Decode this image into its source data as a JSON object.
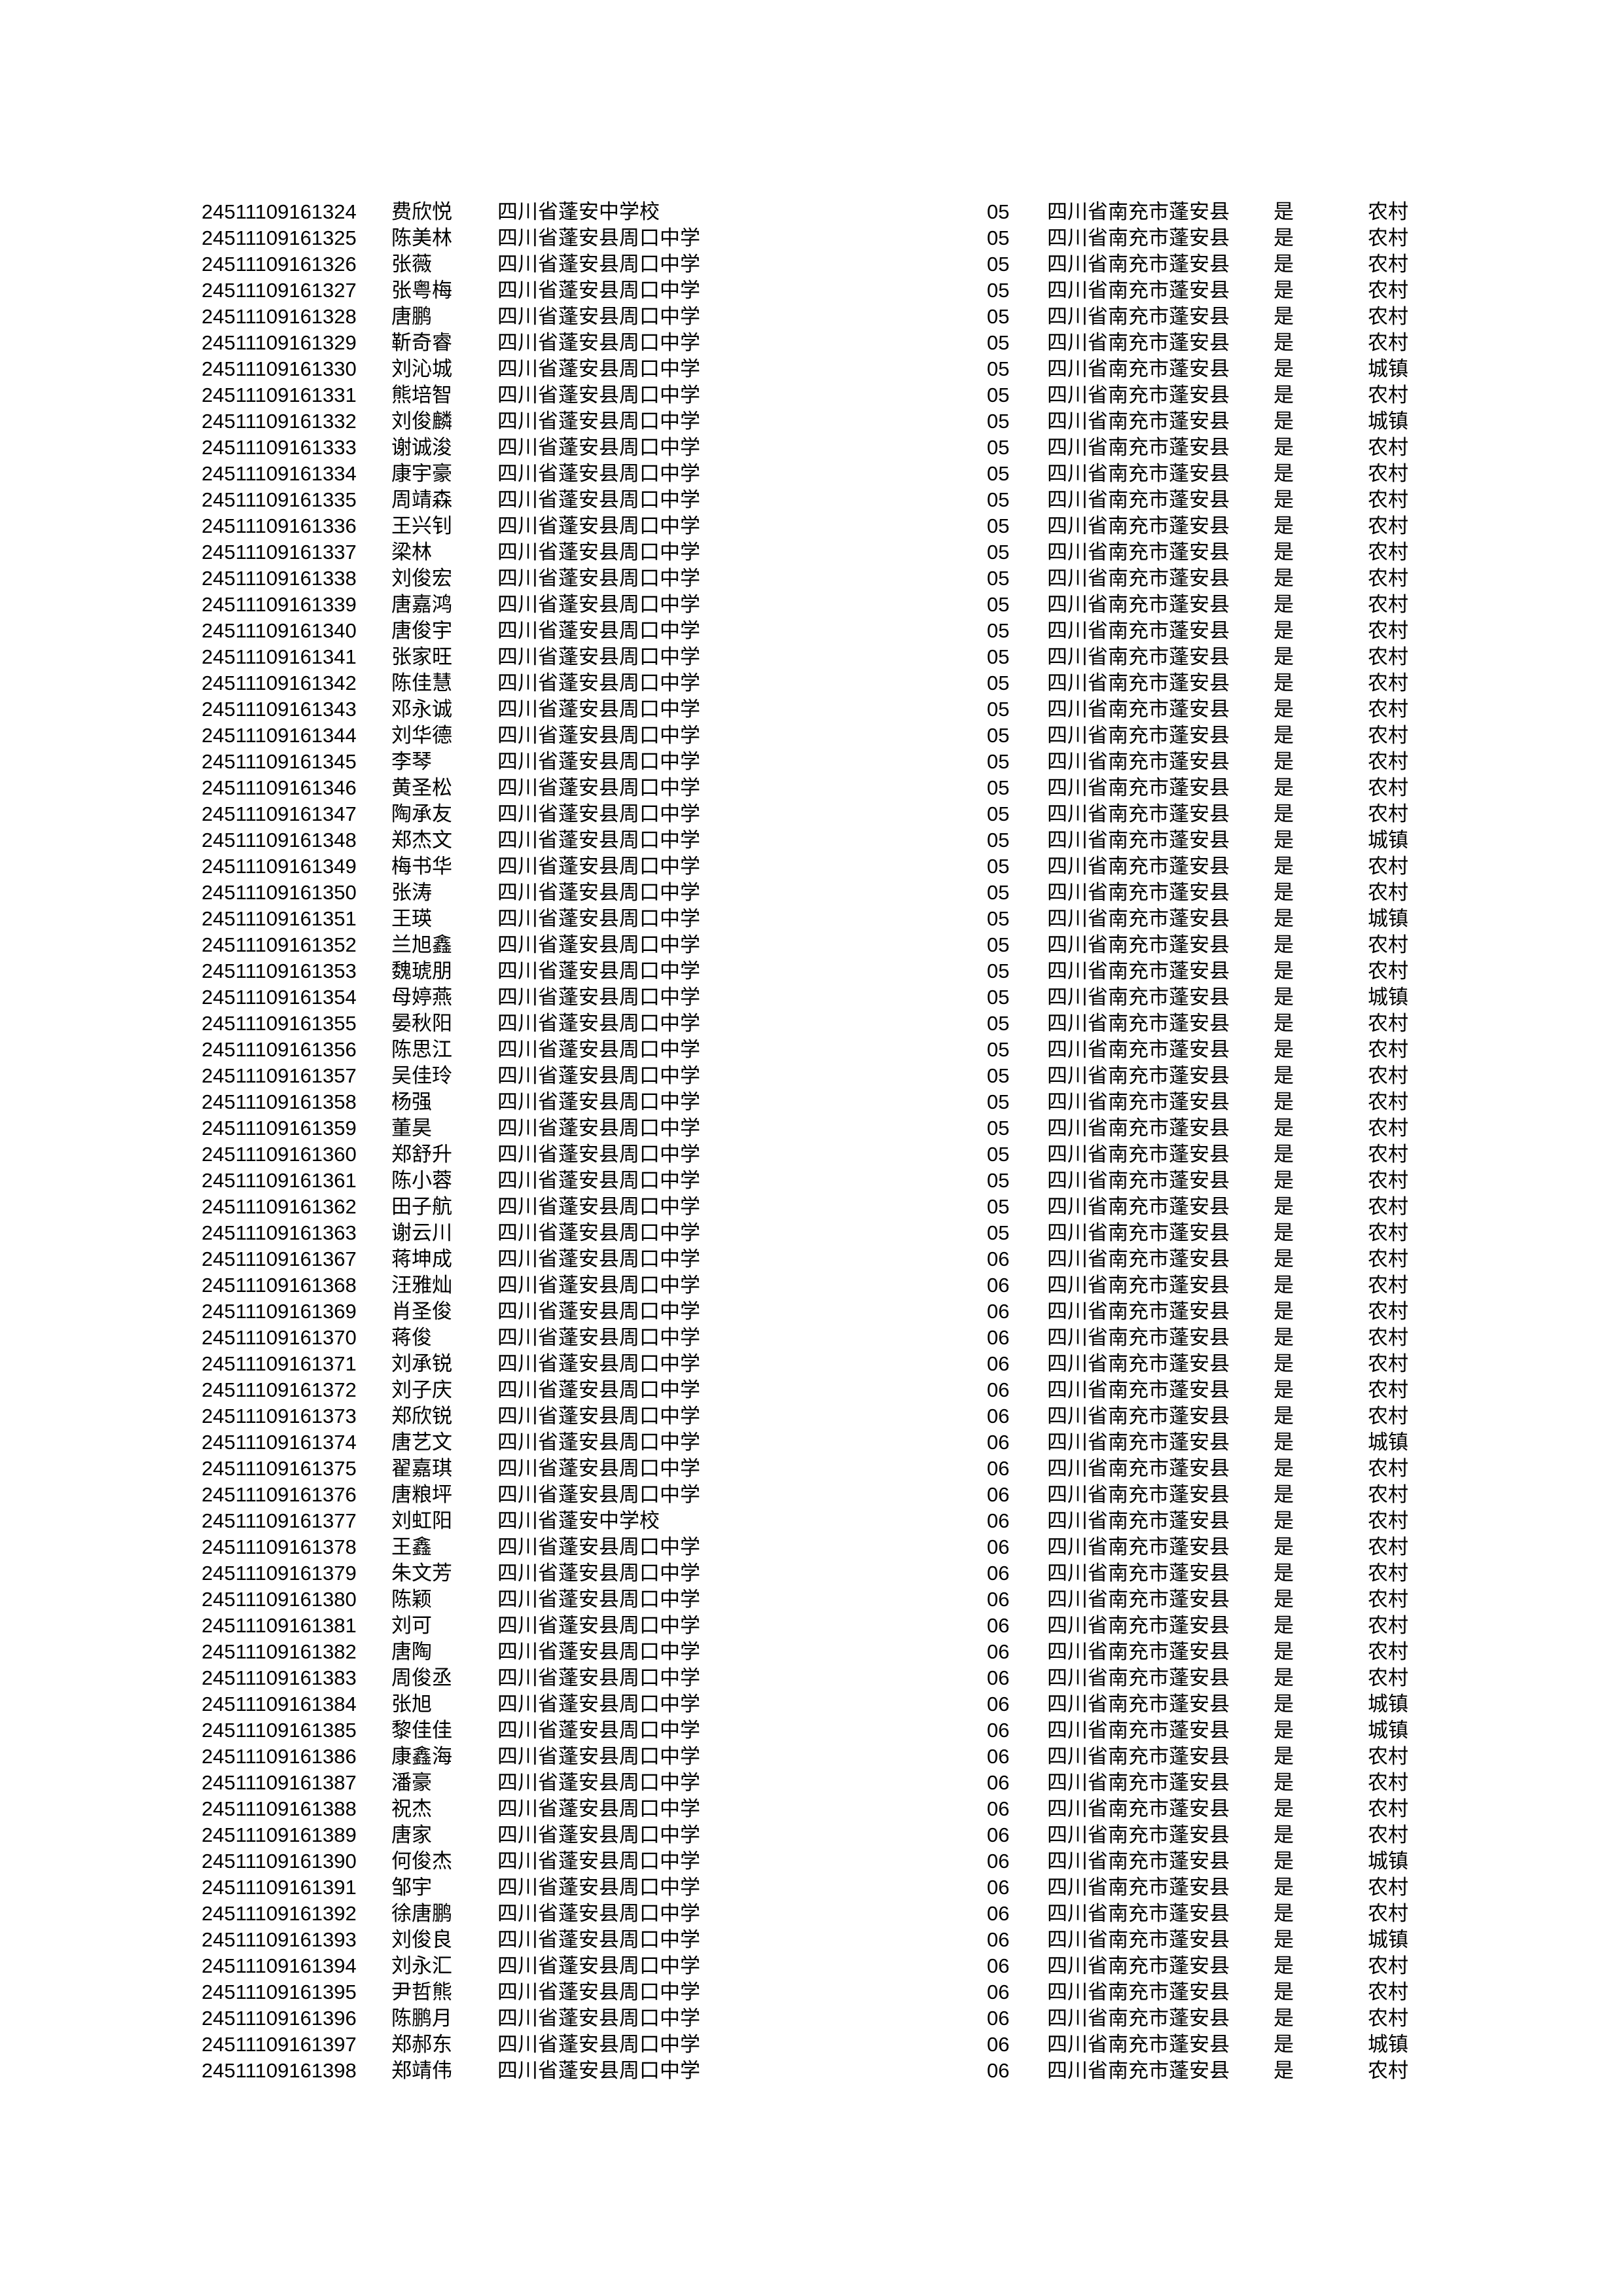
{
  "rows": [
    [
      "24511109161324",
      "费欣悦",
      "四川省蓬安中学校",
      "05",
      "四川省南充市蓬安县",
      "是",
      "农村"
    ],
    [
      "24511109161325",
      "陈美林",
      "四川省蓬安县周口中学",
      "05",
      "四川省南充市蓬安县",
      "是",
      "农村"
    ],
    [
      "24511109161326",
      "张薇",
      "四川省蓬安县周口中学",
      "05",
      "四川省南充市蓬安县",
      "是",
      "农村"
    ],
    [
      "24511109161327",
      "张粤梅",
      "四川省蓬安县周口中学",
      "05",
      "四川省南充市蓬安县",
      "是",
      "农村"
    ],
    [
      "24511109161328",
      "唐鹏",
      "四川省蓬安县周口中学",
      "05",
      "四川省南充市蓬安县",
      "是",
      "农村"
    ],
    [
      "24511109161329",
      "靳奇睿",
      "四川省蓬安县周口中学",
      "05",
      "四川省南充市蓬安县",
      "是",
      "农村"
    ],
    [
      "24511109161330",
      "刘沁城",
      "四川省蓬安县周口中学",
      "05",
      "四川省南充市蓬安县",
      "是",
      "城镇"
    ],
    [
      "24511109161331",
      "熊培智",
      "四川省蓬安县周口中学",
      "05",
      "四川省南充市蓬安县",
      "是",
      "农村"
    ],
    [
      "24511109161332",
      "刘俊麟",
      "四川省蓬安县周口中学",
      "05",
      "四川省南充市蓬安县",
      "是",
      "城镇"
    ],
    [
      "24511109161333",
      "谢诚浚",
      "四川省蓬安县周口中学",
      "05",
      "四川省南充市蓬安县",
      "是",
      "农村"
    ],
    [
      "24511109161334",
      "康宇豪",
      "四川省蓬安县周口中学",
      "05",
      "四川省南充市蓬安县",
      "是",
      "农村"
    ],
    [
      "24511109161335",
      "周靖森",
      "四川省蓬安县周口中学",
      "05",
      "四川省南充市蓬安县",
      "是",
      "农村"
    ],
    [
      "24511109161336",
      "王兴钊",
      "四川省蓬安县周口中学",
      "05",
      "四川省南充市蓬安县",
      "是",
      "农村"
    ],
    [
      "24511109161337",
      "梁林",
      "四川省蓬安县周口中学",
      "05",
      "四川省南充市蓬安县",
      "是",
      "农村"
    ],
    [
      "24511109161338",
      "刘俊宏",
      "四川省蓬安县周口中学",
      "05",
      "四川省南充市蓬安县",
      "是",
      "农村"
    ],
    [
      "24511109161339",
      "唐嘉鸿",
      "四川省蓬安县周口中学",
      "05",
      "四川省南充市蓬安县",
      "是",
      "农村"
    ],
    [
      "24511109161340",
      "唐俊宇",
      "四川省蓬安县周口中学",
      "05",
      "四川省南充市蓬安县",
      "是",
      "农村"
    ],
    [
      "24511109161341",
      "张家旺",
      "四川省蓬安县周口中学",
      "05",
      "四川省南充市蓬安县",
      "是",
      "农村"
    ],
    [
      "24511109161342",
      "陈佳慧",
      "四川省蓬安县周口中学",
      "05",
      "四川省南充市蓬安县",
      "是",
      "农村"
    ],
    [
      "24511109161343",
      "邓永诚",
      "四川省蓬安县周口中学",
      "05",
      "四川省南充市蓬安县",
      "是",
      "农村"
    ],
    [
      "24511109161344",
      "刘华德",
      "四川省蓬安县周口中学",
      "05",
      "四川省南充市蓬安县",
      "是",
      "农村"
    ],
    [
      "24511109161345",
      "李琴",
      "四川省蓬安县周口中学",
      "05",
      "四川省南充市蓬安县",
      "是",
      "农村"
    ],
    [
      "24511109161346",
      "黄圣松",
      "四川省蓬安县周口中学",
      "05",
      "四川省南充市蓬安县",
      "是",
      "农村"
    ],
    [
      "24511109161347",
      "陶承友",
      "四川省蓬安县周口中学",
      "05",
      "四川省南充市蓬安县",
      "是",
      "农村"
    ],
    [
      "24511109161348",
      "郑杰文",
      "四川省蓬安县周口中学",
      "05",
      "四川省南充市蓬安县",
      "是",
      "城镇"
    ],
    [
      "24511109161349",
      "梅书华",
      "四川省蓬安县周口中学",
      "05",
      "四川省南充市蓬安县",
      "是",
      "农村"
    ],
    [
      "24511109161350",
      "张涛",
      "四川省蓬安县周口中学",
      "05",
      "四川省南充市蓬安县",
      "是",
      "农村"
    ],
    [
      "24511109161351",
      "王瑛",
      "四川省蓬安县周口中学",
      "05",
      "四川省南充市蓬安县",
      "是",
      "城镇"
    ],
    [
      "24511109161352",
      "兰旭鑫",
      "四川省蓬安县周口中学",
      "05",
      "四川省南充市蓬安县",
      "是",
      "农村"
    ],
    [
      "24511109161353",
      "魏琥朋",
      "四川省蓬安县周口中学",
      "05",
      "四川省南充市蓬安县",
      "是",
      "农村"
    ],
    [
      "24511109161354",
      "母婷燕",
      "四川省蓬安县周口中学",
      "05",
      "四川省南充市蓬安县",
      "是",
      "城镇"
    ],
    [
      "24511109161355",
      "晏秋阳",
      "四川省蓬安县周口中学",
      "05",
      "四川省南充市蓬安县",
      "是",
      "农村"
    ],
    [
      "24511109161356",
      "陈思江",
      "四川省蓬安县周口中学",
      "05",
      "四川省南充市蓬安县",
      "是",
      "农村"
    ],
    [
      "24511109161357",
      "吴佳玲",
      "四川省蓬安县周口中学",
      "05",
      "四川省南充市蓬安县",
      "是",
      "农村"
    ],
    [
      "24511109161358",
      "杨强",
      "四川省蓬安县周口中学",
      "05",
      "四川省南充市蓬安县",
      "是",
      "农村"
    ],
    [
      "24511109161359",
      "董昊",
      "四川省蓬安县周口中学",
      "05",
      "四川省南充市蓬安县",
      "是",
      "农村"
    ],
    [
      "24511109161360",
      "郑舒升",
      "四川省蓬安县周口中学",
      "05",
      "四川省南充市蓬安县",
      "是",
      "农村"
    ],
    [
      "24511109161361",
      "陈小蓉",
      "四川省蓬安县周口中学",
      "05",
      "四川省南充市蓬安县",
      "是",
      "农村"
    ],
    [
      "24511109161362",
      "田子航",
      "四川省蓬安县周口中学",
      "05",
      "四川省南充市蓬安县",
      "是",
      "农村"
    ],
    [
      "24511109161363",
      "谢云川",
      "四川省蓬安县周口中学",
      "05",
      "四川省南充市蓬安县",
      "是",
      "农村"
    ],
    [
      "24511109161367",
      "蒋坤成",
      "四川省蓬安县周口中学",
      "06",
      "四川省南充市蓬安县",
      "是",
      "农村"
    ],
    [
      "24511109161368",
      "汪雅灿",
      "四川省蓬安县周口中学",
      "06",
      "四川省南充市蓬安县",
      "是",
      "农村"
    ],
    [
      "24511109161369",
      "肖圣俊",
      "四川省蓬安县周口中学",
      "06",
      "四川省南充市蓬安县",
      "是",
      "农村"
    ],
    [
      "24511109161370",
      "蒋俊",
      "四川省蓬安县周口中学",
      "06",
      "四川省南充市蓬安县",
      "是",
      "农村"
    ],
    [
      "24511109161371",
      "刘承锐",
      "四川省蓬安县周口中学",
      "06",
      "四川省南充市蓬安县",
      "是",
      "农村"
    ],
    [
      "24511109161372",
      "刘子庆",
      "四川省蓬安县周口中学",
      "06",
      "四川省南充市蓬安县",
      "是",
      "农村"
    ],
    [
      "24511109161373",
      "郑欣锐",
      "四川省蓬安县周口中学",
      "06",
      "四川省南充市蓬安县",
      "是",
      "农村"
    ],
    [
      "24511109161374",
      "唐艺文",
      "四川省蓬安县周口中学",
      "06",
      "四川省南充市蓬安县",
      "是",
      "城镇"
    ],
    [
      "24511109161375",
      "翟嘉琪",
      "四川省蓬安县周口中学",
      "06",
      "四川省南充市蓬安县",
      "是",
      "农村"
    ],
    [
      "24511109161376",
      "唐粮坪",
      "四川省蓬安县周口中学",
      "06",
      "四川省南充市蓬安县",
      "是",
      "农村"
    ],
    [
      "24511109161377",
      "刘虹阳",
      "四川省蓬安中学校",
      "06",
      "四川省南充市蓬安县",
      "是",
      "农村"
    ],
    [
      "24511109161378",
      "王鑫",
      "四川省蓬安县周口中学",
      "06",
      "四川省南充市蓬安县",
      "是",
      "农村"
    ],
    [
      "24511109161379",
      "朱文芳",
      "四川省蓬安县周口中学",
      "06",
      "四川省南充市蓬安县",
      "是",
      "农村"
    ],
    [
      "24511109161380",
      "陈颖",
      "四川省蓬安县周口中学",
      "06",
      "四川省南充市蓬安县",
      "是",
      "农村"
    ],
    [
      "24511109161381",
      "刘可",
      "四川省蓬安县周口中学",
      "06",
      "四川省南充市蓬安县",
      "是",
      "农村"
    ],
    [
      "24511109161382",
      "唐陶",
      "四川省蓬安县周口中学",
      "06",
      "四川省南充市蓬安县",
      "是",
      "农村"
    ],
    [
      "24511109161383",
      "周俊丞",
      "四川省蓬安县周口中学",
      "06",
      "四川省南充市蓬安县",
      "是",
      "农村"
    ],
    [
      "24511109161384",
      "张旭",
      "四川省蓬安县周口中学",
      "06",
      "四川省南充市蓬安县",
      "是",
      "城镇"
    ],
    [
      "24511109161385",
      "黎佳佳",
      "四川省蓬安县周口中学",
      "06",
      "四川省南充市蓬安县",
      "是",
      "城镇"
    ],
    [
      "24511109161386",
      "康鑫海",
      "四川省蓬安县周口中学",
      "06",
      "四川省南充市蓬安县",
      "是",
      "农村"
    ],
    [
      "24511109161387",
      "潘豪",
      "四川省蓬安县周口中学",
      "06",
      "四川省南充市蓬安县",
      "是",
      "农村"
    ],
    [
      "24511109161388",
      "祝杰",
      "四川省蓬安县周口中学",
      "06",
      "四川省南充市蓬安县",
      "是",
      "农村"
    ],
    [
      "24511109161389",
      "唐家",
      "四川省蓬安县周口中学",
      "06",
      "四川省南充市蓬安县",
      "是",
      "农村"
    ],
    [
      "24511109161390",
      "何俊杰",
      "四川省蓬安县周口中学",
      "06",
      "四川省南充市蓬安县",
      "是",
      "城镇"
    ],
    [
      "24511109161391",
      "邹宇",
      "四川省蓬安县周口中学",
      "06",
      "四川省南充市蓬安县",
      "是",
      "农村"
    ],
    [
      "24511109161392",
      "徐唐鹏",
      "四川省蓬安县周口中学",
      "06",
      "四川省南充市蓬安县",
      "是",
      "农村"
    ],
    [
      "24511109161393",
      "刘俊良",
      "四川省蓬安县周口中学",
      "06",
      "四川省南充市蓬安县",
      "是",
      "城镇"
    ],
    [
      "24511109161394",
      "刘永汇",
      "四川省蓬安县周口中学",
      "06",
      "四川省南充市蓬安县",
      "是",
      "农村"
    ],
    [
      "24511109161395",
      "尹哲熊",
      "四川省蓬安县周口中学",
      "06",
      "四川省南充市蓬安县",
      "是",
      "农村"
    ],
    [
      "24511109161396",
      "陈鹏月",
      "四川省蓬安县周口中学",
      "06",
      "四川省南充市蓬安县",
      "是",
      "农村"
    ],
    [
      "24511109161397",
      "郑郝东",
      "四川省蓬安县周口中学",
      "06",
      "四川省南充市蓬安县",
      "是",
      "城镇"
    ],
    [
      "24511109161398",
      "郑靖伟",
      "四川省蓬安县周口中学",
      "06",
      "四川省南充市蓬安县",
      "是",
      "农村"
    ]
  ]
}
